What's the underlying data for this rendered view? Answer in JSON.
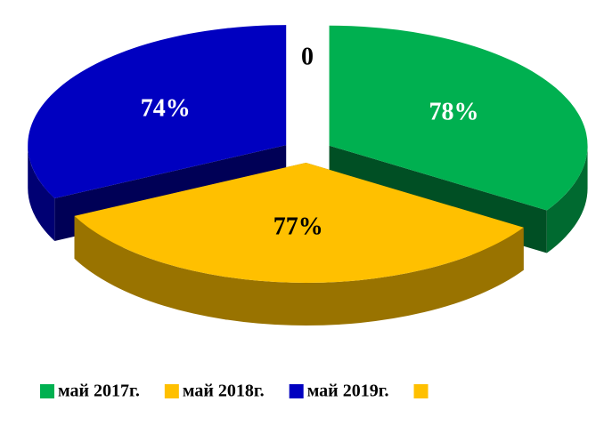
{
  "chart_data": {
    "type": "pie",
    "categories": [
      "май 2017г.",
      "май 2018г.",
      "май 2019г.",
      null
    ],
    "values": [
      78,
      77,
      74,
      0
    ],
    "value_labels": [
      "78%",
      "77%",
      "74%",
      "0"
    ],
    "colors": [
      "#00b050",
      "#ffc000",
      "#0000c0",
      "#ffc000"
    ],
    "legend": "bottom"
  }
}
